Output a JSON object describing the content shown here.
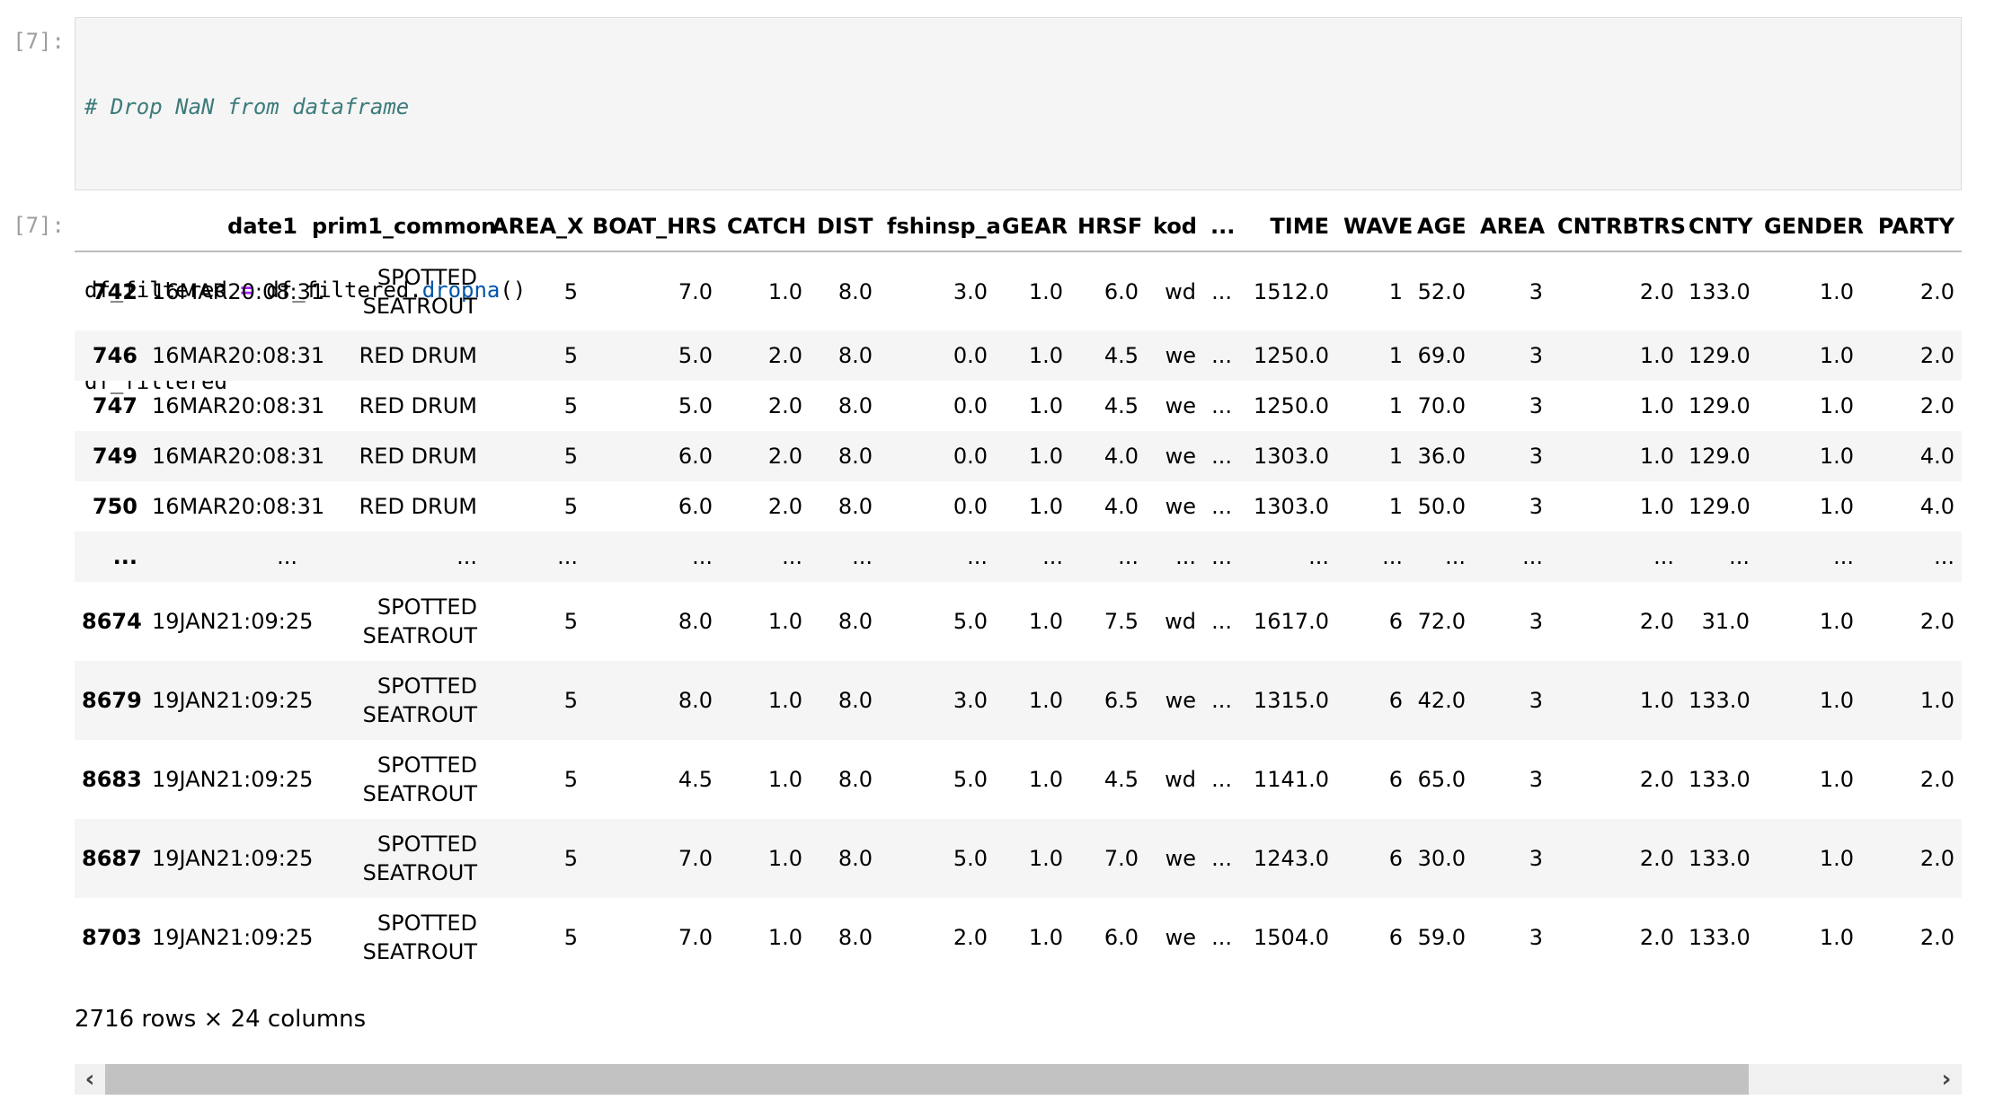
{
  "cell": {
    "in_prompt": "[7]:",
    "out_prompt": "[7]:",
    "code": {
      "comment": "# Drop NaN from dataframe",
      "line2_a": "df_filtered ",
      "line2_op": "=",
      "line2_b": " df_filtered.",
      "line2_func": "dropna",
      "line2_c": "()",
      "line3": "df_filtered"
    }
  },
  "table": {
    "columns": [
      "",
      "date1",
      "prim1_common",
      "AREA_X",
      "BOAT_HRS",
      "CATCH",
      "DIST",
      "fshinsp_a",
      "GEAR",
      "HRSF",
      "kod",
      "...",
      "TIME",
      "WAVE",
      "AGE",
      "AREA",
      "CNTRBTRS",
      "CNTY",
      "GENDER",
      "PARTY"
    ],
    "rows": [
      [
        "742",
        "16MAR20:08:31",
        "SPOTTED SEATROUT",
        "5",
        "7.0",
        "1.0",
        "8.0",
        "3.0",
        "1.0",
        "6.0",
        "wd",
        "...",
        "1512.0",
        "1",
        "52.0",
        "3",
        "2.0",
        "133.0",
        "1.0",
        "2.0"
      ],
      [
        "746",
        "16MAR20:08:31",
        "RED DRUM",
        "5",
        "5.0",
        "2.0",
        "8.0",
        "0.0",
        "1.0",
        "4.5",
        "we",
        "...",
        "1250.0",
        "1",
        "69.0",
        "3",
        "1.0",
        "129.0",
        "1.0",
        "2.0"
      ],
      [
        "747",
        "16MAR20:08:31",
        "RED DRUM",
        "5",
        "5.0",
        "2.0",
        "8.0",
        "0.0",
        "1.0",
        "4.5",
        "we",
        "...",
        "1250.0",
        "1",
        "70.0",
        "3",
        "1.0",
        "129.0",
        "1.0",
        "2.0"
      ],
      [
        "749",
        "16MAR20:08:31",
        "RED DRUM",
        "5",
        "6.0",
        "2.0",
        "8.0",
        "0.0",
        "1.0",
        "4.0",
        "we",
        "...",
        "1303.0",
        "1",
        "36.0",
        "3",
        "1.0",
        "129.0",
        "1.0",
        "4.0"
      ],
      [
        "750",
        "16MAR20:08:31",
        "RED DRUM",
        "5",
        "6.0",
        "2.0",
        "8.0",
        "0.0",
        "1.0",
        "4.0",
        "we",
        "...",
        "1303.0",
        "1",
        "50.0",
        "3",
        "1.0",
        "129.0",
        "1.0",
        "4.0"
      ],
      [
        "...",
        "...",
        "...",
        "...",
        "...",
        "...",
        "...",
        "...",
        "...",
        "...",
        "...",
        "...",
        "...",
        "...",
        "...",
        "...",
        "...",
        "...",
        "...",
        "..."
      ],
      [
        "8674",
        "19JAN21:09:25",
        "SPOTTED SEATROUT",
        "5",
        "8.0",
        "1.0",
        "8.0",
        "5.0",
        "1.0",
        "7.5",
        "wd",
        "...",
        "1617.0",
        "6",
        "72.0",
        "3",
        "2.0",
        "31.0",
        "1.0",
        "2.0"
      ],
      [
        "8679",
        "19JAN21:09:25",
        "SPOTTED SEATROUT",
        "5",
        "8.0",
        "1.0",
        "8.0",
        "3.0",
        "1.0",
        "6.5",
        "we",
        "...",
        "1315.0",
        "6",
        "42.0",
        "3",
        "1.0",
        "133.0",
        "1.0",
        "1.0"
      ],
      [
        "8683",
        "19JAN21:09:25",
        "SPOTTED SEATROUT",
        "5",
        "4.5",
        "1.0",
        "8.0",
        "5.0",
        "1.0",
        "4.5",
        "wd",
        "...",
        "1141.0",
        "6",
        "65.0",
        "3",
        "2.0",
        "133.0",
        "1.0",
        "2.0"
      ],
      [
        "8687",
        "19JAN21:09:25",
        "SPOTTED SEATROUT",
        "5",
        "7.0",
        "1.0",
        "8.0",
        "5.0",
        "1.0",
        "7.0",
        "we",
        "...",
        "1243.0",
        "6",
        "30.0",
        "3",
        "2.0",
        "133.0",
        "1.0",
        "2.0"
      ],
      [
        "8703",
        "19JAN21:09:25",
        "SPOTTED SEATROUT",
        "5",
        "7.0",
        "1.0",
        "8.0",
        "2.0",
        "1.0",
        "6.0",
        "we",
        "...",
        "1504.0",
        "6",
        "59.0",
        "3",
        "2.0",
        "133.0",
        "1.0",
        "2.0"
      ]
    ],
    "shape": "2716 rows × 24 columns"
  },
  "scrollbar": {
    "left_icon": "chevron-left-icon",
    "right_icon": "chevron-right-icon",
    "left_glyph": "‹",
    "right_glyph": "›",
    "position_fraction": 0.0,
    "visible_fraction": 0.9
  }
}
